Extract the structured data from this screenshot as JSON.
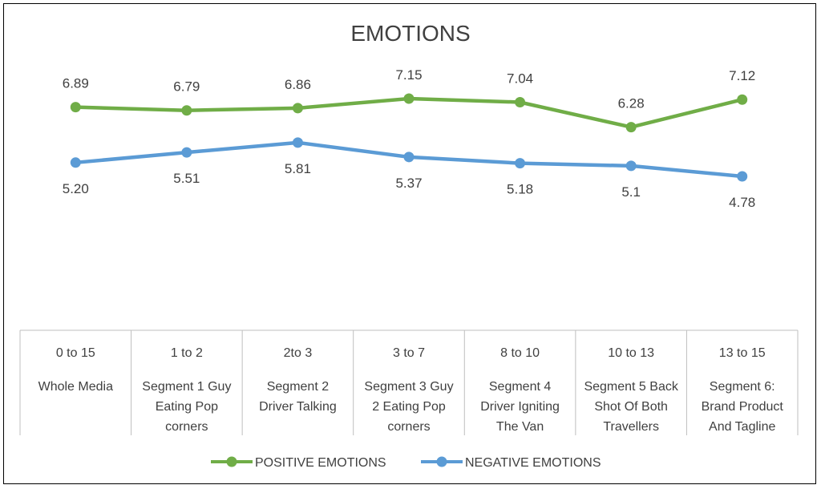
{
  "chart_data": {
    "type": "line",
    "title": "EMOTIONS",
    "categories": [
      {
        "range": "0 to 15",
        "desc": [
          "Whole Media"
        ]
      },
      {
        "range": "1 to 2",
        "desc": [
          "Segment 1 Guy",
          "Eating Pop",
          "corners"
        ]
      },
      {
        "range": "2to 3",
        "desc": [
          "Segment 2",
          "Driver Talking"
        ]
      },
      {
        "range": "3 to 7",
        "desc": [
          "Segment 3  Guy",
          "2 Eating Pop",
          "corners"
        ]
      },
      {
        "range": "8 to 10",
        "desc": [
          "Segment 4",
          "Driver Igniting",
          "The Van"
        ]
      },
      {
        "range": "10 to 13",
        "desc": [
          "Segment 5  Back",
          "Shot Of Both",
          "Travellers"
        ]
      },
      {
        "range": "13 to 15",
        "desc": [
          "Segment 6:",
          "Brand Product",
          "And Tagline"
        ]
      }
    ],
    "series": [
      {
        "name": "POSITIVE EMOTIONS",
        "color": "#70ad47",
        "values": [
          6.89,
          6.79,
          6.86,
          7.15,
          7.04,
          6.28,
          7.12
        ],
        "labels": [
          "6.89",
          "6.79",
          "6.86",
          "7.15",
          "7.04",
          "6.28",
          "7.12"
        ],
        "label_position": "above"
      },
      {
        "name": "NEGATIVE EMOTIONS",
        "color": "#5b9bd5",
        "values": [
          5.2,
          5.51,
          5.81,
          5.37,
          5.18,
          5.1,
          4.78
        ],
        "labels": [
          "5.20",
          "5.51",
          "5.81",
          "5.37",
          "5.18",
          "5.1",
          "4.78"
        ],
        "label_position": "below"
      }
    ],
    "axis_table": true,
    "grid": false,
    "legend_position": "bottom"
  }
}
